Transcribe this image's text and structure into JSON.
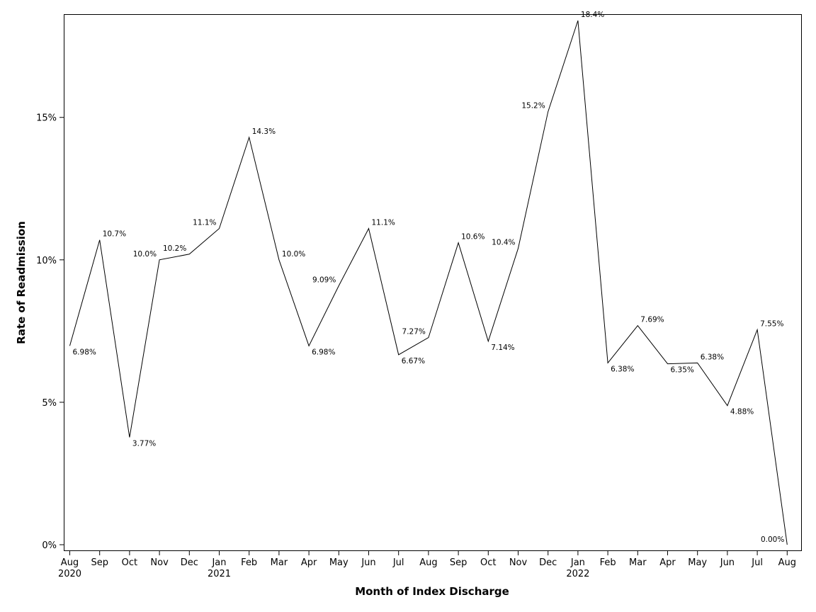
{
  "chart_data": {
    "type": "line",
    "title": "",
    "xlabel": "Month of Index Discharge",
    "ylabel": "Rate of Readmission",
    "ylim": [
      0,
      18.4
    ],
    "yticks": [
      0,
      5,
      10,
      15
    ],
    "ytick_labels": [
      "0%",
      "5%",
      "10%",
      "15%"
    ],
    "grid": false,
    "legend": "none",
    "line_color": "#000000",
    "categories": [
      "Aug",
      "Sep",
      "Oct",
      "Nov",
      "Dec",
      "Jan",
      "Feb",
      "Mar",
      "Apr",
      "May",
      "Jun",
      "Jul",
      "Aug",
      "Sep",
      "Oct",
      "Nov",
      "Dec",
      "Jan",
      "Feb",
      "Mar",
      "Apr",
      "May",
      "Jun",
      "Jul",
      "Aug"
    ],
    "category_years": [
      "2020",
      "",
      "",
      "",
      "",
      "2021",
      "",
      "",
      "",
      "",
      "",
      "",
      "",
      "",
      "",
      "",
      "",
      "2022",
      "",
      "",
      "",
      "",
      "",
      "",
      ""
    ],
    "series": [
      {
        "values": [
          6.98,
          10.7,
          3.77,
          10.0,
          10.2,
          11.1,
          14.3,
          10.0,
          6.98,
          9.09,
          11.1,
          6.67,
          7.27,
          10.6,
          7.14,
          10.4,
          15.2,
          18.4,
          6.38,
          7.69,
          6.35,
          6.38,
          4.88,
          7.55,
          0.0
        ],
        "labels": [
          "6.98%",
          "10.7%",
          "3.77%",
          "10.0%",
          "10.2%",
          "11.1%",
          "14.3%",
          "10.0%",
          "6.98%",
          "9.09%",
          "11.1%",
          "6.67%",
          "7.27%",
          "10.6%",
          "7.14%",
          "10.4%",
          "15.2%",
          "18.4%",
          "6.38%",
          "7.69%",
          "6.35%",
          "6.38%",
          "4.88%",
          "7.55%",
          "0.00%"
        ]
      }
    ]
  }
}
